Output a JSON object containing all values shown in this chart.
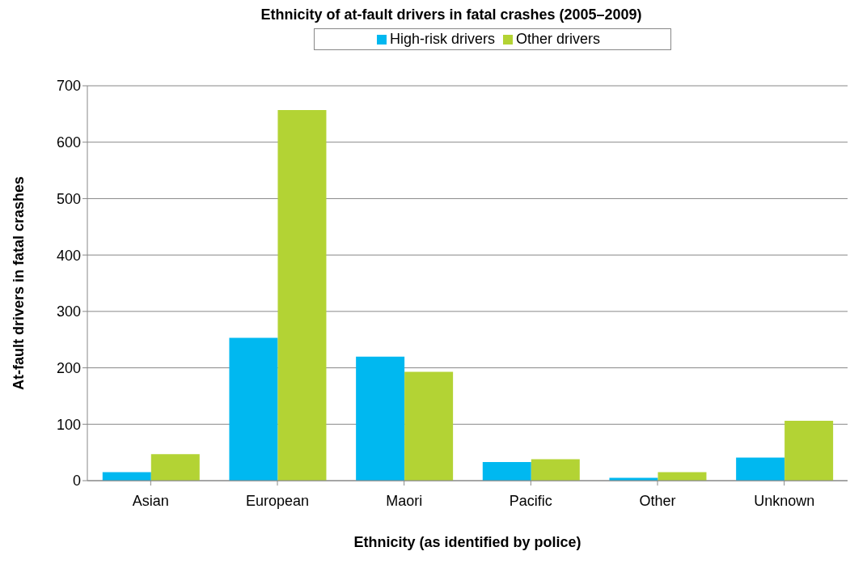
{
  "chart_data": {
    "type": "bar",
    "title": "Ethnicity of at-fault drivers in fatal crashes (2005–2009)",
    "xlabel": "Ethnicity (as identified by police)",
    "ylabel": "At-fault drivers in fatal crashes",
    "categories": [
      "Asian",
      "European",
      "Maori",
      "Pacific",
      "Other",
      "Unknown"
    ],
    "series": [
      {
        "name": "High-risk drivers",
        "color": "#00b8f0",
        "values": [
          15,
          253,
          220,
          33,
          5,
          41
        ]
      },
      {
        "name": "Other drivers",
        "color": "#b3d334",
        "values": [
          47,
          657,
          193,
          38,
          15,
          106
        ]
      }
    ],
    "ylim": [
      0,
      700
    ],
    "yticks": [
      0,
      100,
      200,
      300,
      400,
      500,
      600,
      700
    ],
    "grid": "y",
    "legend": "top"
  }
}
